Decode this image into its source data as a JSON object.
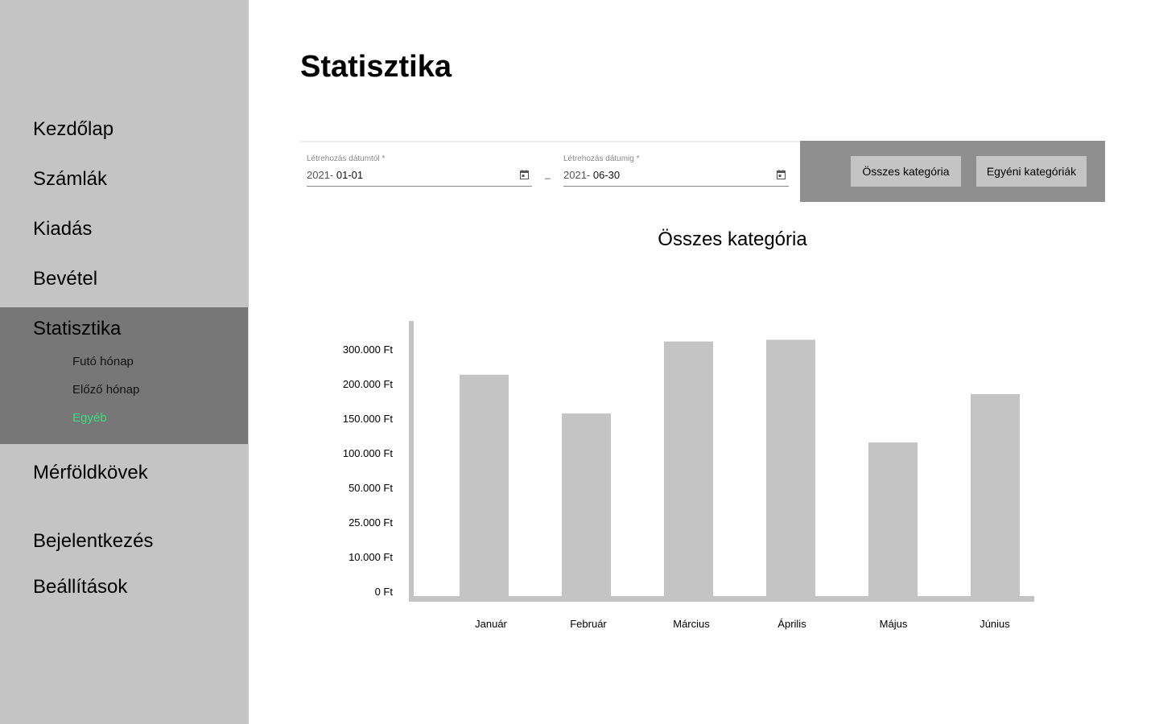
{
  "sidebar": {
    "items": [
      {
        "label": "Kezdőlap"
      },
      {
        "label": "Számlák"
      },
      {
        "label": "Kiadás"
      },
      {
        "label": "Bevétel"
      },
      {
        "label": "Statisztika"
      },
      {
        "label": "Mérföldkövek"
      },
      {
        "label": "Bejelentkezés"
      },
      {
        "label": "Beállítások"
      }
    ],
    "sub_items": [
      {
        "label": "Futó hónap"
      },
      {
        "label": "Előző hónap"
      },
      {
        "label": "Egyéb"
      }
    ],
    "active_item": "Statisztika",
    "active_sub_item": "Egyéb"
  },
  "page": {
    "title": "Statisztika"
  },
  "filters": {
    "from": {
      "label": "Létrehozás dátumtól *",
      "year": "2021-",
      "value": " 01-01"
    },
    "to": {
      "label": "Létrehozás dátumig *",
      "year": "2021-",
      "value": " 06-30"
    },
    "separator": "–",
    "buttons": {
      "all": "Összes kategória",
      "custom": "Egyéni kategóriák"
    }
  },
  "colors": {
    "sidebar_bg": "#c4c4c4",
    "active_bg": "#777777",
    "active_sub_text": "#3ddc84",
    "bar": "#c4c4c4",
    "button_panel": "#8f8f8f"
  },
  "chart_data": {
    "type": "bar",
    "title": "Összes kategória",
    "categories": [
      "Január",
      "Február",
      "Március",
      "Április",
      "Május",
      "Június"
    ],
    "y_tick_labels": [
      "0 Ft",
      "10.000 Ft",
      "25.000 Ft",
      "50.000 Ft",
      "100.000 Ft",
      "150.000 Ft",
      "200.000 Ft",
      "300.000 Ft"
    ],
    "y_tick_values": [
      0,
      10000,
      25000,
      50000,
      100000,
      150000,
      200000,
      300000
    ],
    "values": [
      240000,
      164000,
      336000,
      341000,
      122000,
      192000
    ],
    "xlabel": "",
    "ylabel": "",
    "grid": false,
    "legend": "none"
  }
}
